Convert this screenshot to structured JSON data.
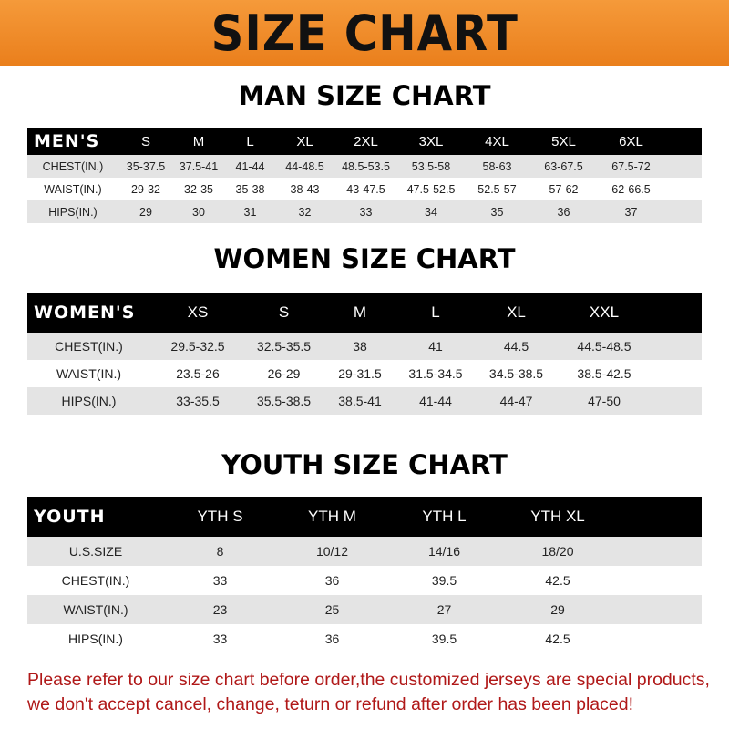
{
  "banner_title": "SIZE CHART",
  "men": {
    "title": "MAN SIZE CHART",
    "header": [
      "MEN'S",
      "S",
      "M",
      "L",
      "XL",
      "2XL",
      "3XL",
      "4XL",
      "5XL",
      "6XL"
    ],
    "rows": [
      [
        "CHEST(IN.)",
        "35-37.5",
        "37.5-41",
        "41-44",
        "44-48.5",
        "48.5-53.5",
        "53.5-58",
        "58-63",
        "63-67.5",
        "67.5-72"
      ],
      [
        "WAIST(IN.)",
        "29-32",
        "32-35",
        "35-38",
        "38-43",
        "43-47.5",
        "47.5-52.5",
        "52.5-57",
        "57-62",
        "62-66.5"
      ],
      [
        "HIPS(IN.)",
        "29",
        "30",
        "31",
        "32",
        "33",
        "34",
        "35",
        "36",
        "37"
      ]
    ]
  },
  "women": {
    "title": "WOMEN SIZE CHART",
    "header": [
      "WOMEN'S",
      "XS",
      "S",
      "M",
      "L",
      "XL",
      "XXL"
    ],
    "rows": [
      [
        "CHEST(IN.)",
        "29.5-32.5",
        "32.5-35.5",
        "38",
        "41",
        "44.5",
        "44.5-48.5"
      ],
      [
        "WAIST(IN.)",
        "23.5-26",
        "26-29",
        "29-31.5",
        "31.5-34.5",
        "34.5-38.5",
        "38.5-42.5"
      ],
      [
        "HIPS(IN.)",
        "33-35.5",
        "35.5-38.5",
        "38.5-41",
        "41-44",
        "44-47",
        "47-50"
      ]
    ]
  },
  "youth": {
    "title": "YOUTH SIZE CHART",
    "header": [
      "YOUTH",
      "YTH S",
      "YTH M",
      "YTH L",
      "YTH XL"
    ],
    "rows": [
      [
        "U.S.SIZE",
        "8",
        "10/12",
        "14/16",
        "18/20"
      ],
      [
        "CHEST(IN.)",
        "33",
        "36",
        "39.5",
        "42.5"
      ],
      [
        "WAIST(IN.)",
        "23",
        "25",
        "27",
        "29"
      ],
      [
        "HIPS(IN.)",
        "33",
        "36",
        "39.5",
        "42.5"
      ]
    ]
  },
  "notice": "Please refer to our size chart before order,the customized jerseys are special products, we don't accept cancel, change, teturn or refund after order has been placed!",
  "colors": {
    "banner": "#ee8a28",
    "header_row": "#000000",
    "stripe": "#e4e4e4",
    "notice": "#b01818"
  }
}
